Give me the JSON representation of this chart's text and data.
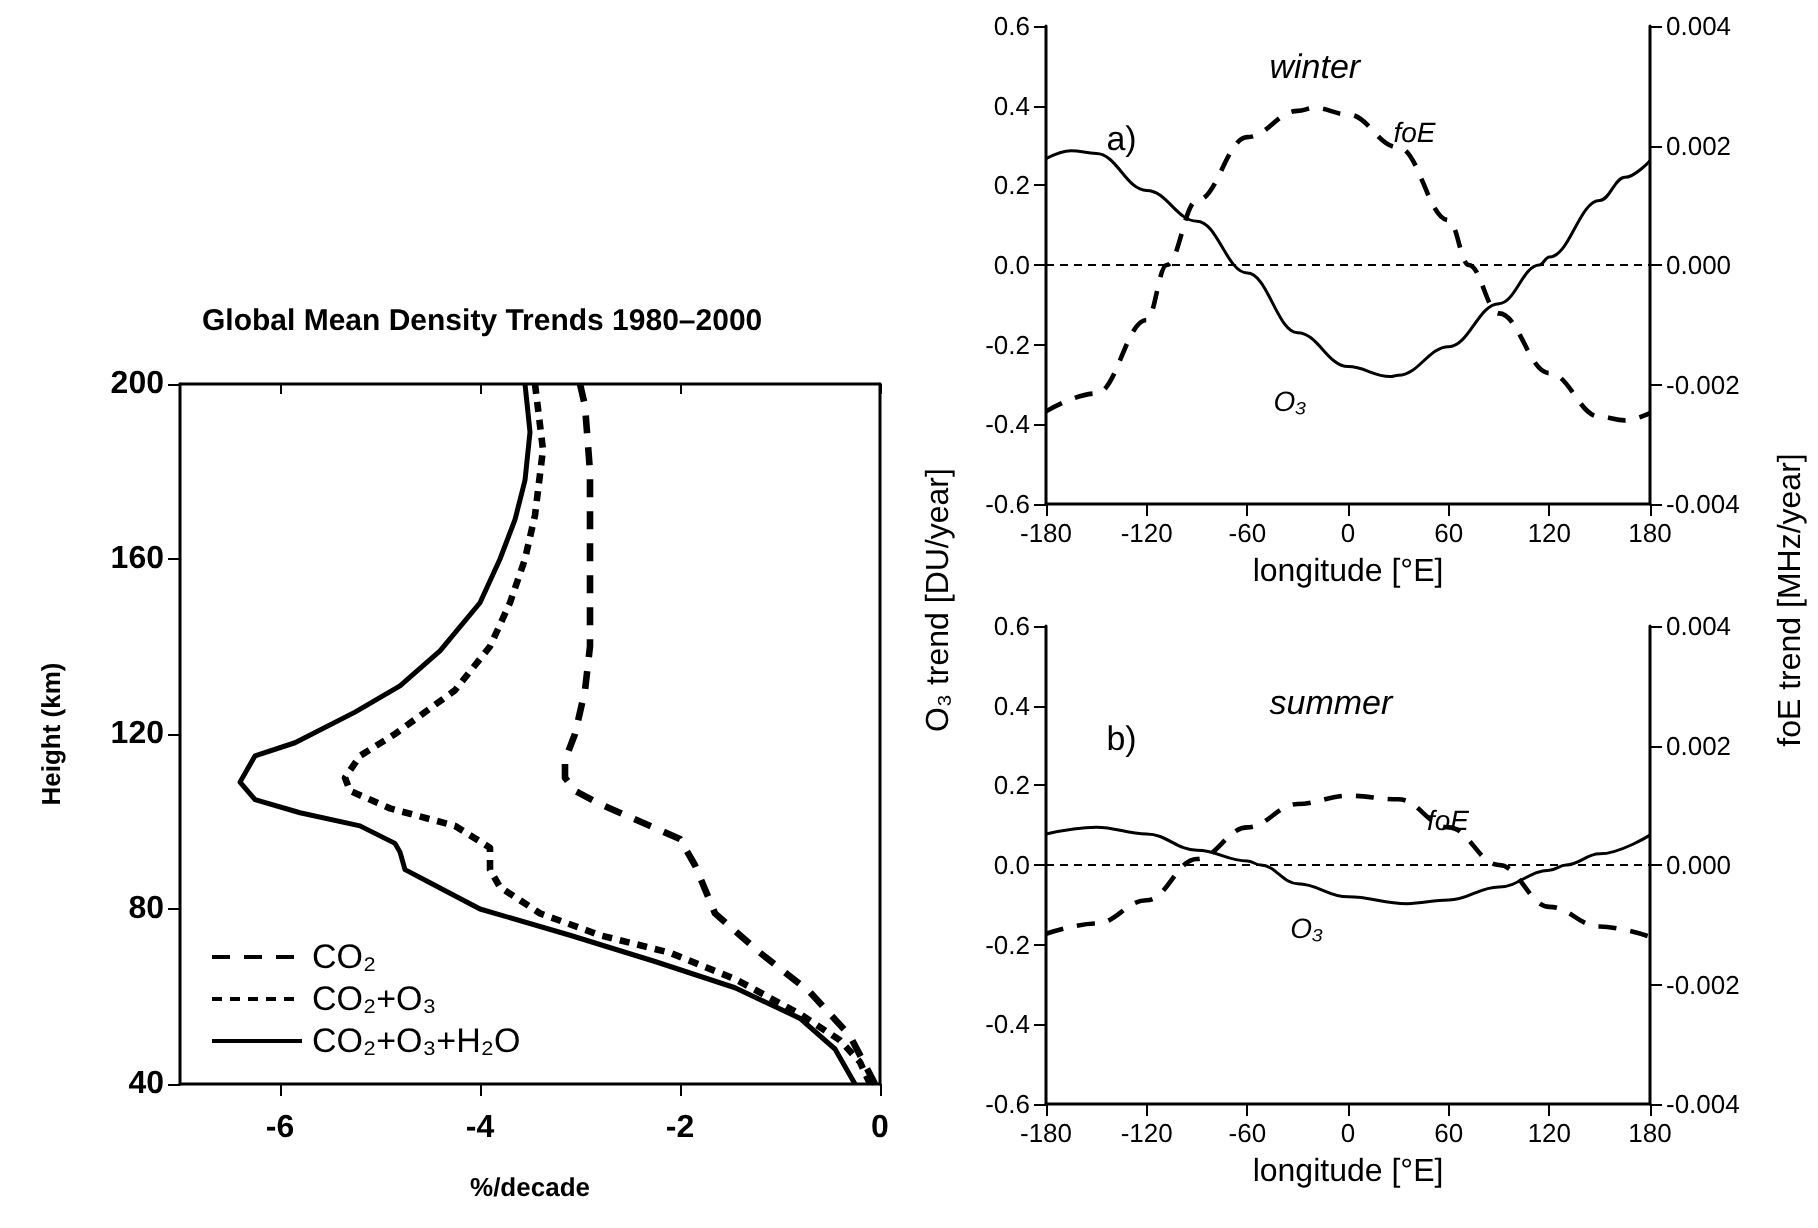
{
  "chart_data": [
    {
      "type": "line",
      "title": "Global Mean Density Trends 1980–2000",
      "xlabel": "%/decade",
      "ylabel": "Height (km)",
      "xlim": [
        -7,
        0
      ],
      "xticks": [
        -6,
        -4,
        -2,
        0
      ],
      "ylim": [
        40,
        200
      ],
      "yticks": [
        40,
        80,
        120,
        160,
        200
      ],
      "legend": "bottom left",
      "series": [
        {
          "name": "CO₂",
          "color": "#000000",
          "line_style": "dashed",
          "x": [
            -3.0,
            -2.95,
            -2.9,
            -2.9,
            -2.95,
            -3.05,
            -3.15,
            -3.15,
            -3.05,
            -2.8,
            -2.4,
            -2.0,
            -1.85,
            -1.65,
            -1.2,
            -0.7,
            -0.3,
            -0.05
          ],
          "values": [
            200,
            195,
            180,
            140,
            130,
            120,
            114,
            110,
            107,
            104,
            100,
            96,
            90,
            79,
            70,
            61,
            51,
            40
          ]
        },
        {
          "name": "CO₂+O₃",
          "color": "#000000",
          "line_style": "dotted",
          "x": [
            -3.45,
            -3.37,
            -3.45,
            -3.55,
            -3.7,
            -3.9,
            -4.25,
            -4.85,
            -5.2,
            -5.35,
            -5.3,
            -4.9,
            -4.25,
            -3.9,
            -3.9,
            -3.8,
            -3.4,
            -2.8,
            -2.1,
            -1.45,
            -0.8,
            -0.4,
            -0.2,
            -0.1
          ],
          "values": [
            200,
            185,
            170,
            160,
            150,
            140,
            130,
            120,
            115,
            110,
            107,
            103,
            99,
            94,
            89,
            85,
            79,
            74,
            70,
            64,
            56,
            50,
            45,
            40
          ]
        },
        {
          "name": "CO₂+O₃+H₂O",
          "color": "#000000",
          "line_style": "solid",
          "x": [
            -3.55,
            -3.5,
            -3.55,
            -3.65,
            -3.8,
            -4.0,
            -4.4,
            -4.8,
            -5.25,
            -5.85,
            -6.25,
            -6.4,
            -6.25,
            -5.8,
            -5.2,
            -4.85,
            -4.8,
            -4.75,
            -4.5,
            -4.0,
            -3.1,
            -2.25,
            -1.45,
            -0.8,
            -0.45,
            -0.3,
            -0.25
          ],
          "values": [
            200,
            189,
            178,
            169,
            160,
            150,
            139,
            131,
            125,
            118,
            115,
            109,
            105,
            102,
            99,
            95,
            93,
            89,
            86,
            80,
            74,
            68,
            62,
            55,
            48,
            42,
            40
          ]
        }
      ]
    },
    {
      "type": "line",
      "xlabel": "longitude [°E]",
      "ylabel": "O₃ trend [DU/year]",
      "y2label": "foE trend [MHz/year]",
      "annotations": [
        "a)",
        "winter"
      ],
      "xlim": [
        -180,
        180
      ],
      "xticks": [
        -180,
        -120,
        -60,
        0,
        60,
        120,
        180
      ],
      "ylim": [
        -0.6,
        0.6
      ],
      "yticks": [
        -0.6,
        -0.4,
        -0.2,
        {
          "value": 0,
          "label": "0.0"
        },
        0.2,
        0.4,
        0.6
      ],
      "y2lim": [
        -0.004,
        0.004
      ],
      "y2ticks": [
        -0.004,
        -0.002,
        {
          "value": 0,
          "label": "0.000"
        },
        0.002,
        0.004
      ],
      "ref_lines": [
        {
          "axis": "y",
          "value": 0,
          "line_style": "dashed",
          "color": "#000000"
        }
      ],
      "x": [
        -180,
        -165,
        -150,
        -120,
        -90,
        -60,
        -30,
        0,
        25,
        30,
        60,
        90,
        114,
        120,
        150,
        165,
        180
      ],
      "series": [
        {
          "name": "O₃",
          "color": "#000000",
          "line_style": "solid",
          "values": [
            0.267,
            0.287,
            0.28,
            0.187,
            0.11,
            -0.02,
            -0.17,
            -0.255,
            -0.28,
            -0.277,
            -0.205,
            -0.097,
            0,
            0.02,
            0.162,
            0.22,
            0.262
          ]
        },
        {
          "name": "foE",
          "color": "#000000",
          "line_style": "dashed",
          "axis": "y2",
          "x": [
            -180,
            -150,
            -120,
            -108,
            -90,
            -60,
            -30,
            -20,
            0,
            30,
            60,
            72,
            90,
            120,
            150,
            165,
            180
          ],
          "values": [
            -0.00245,
            -0.00215,
            -0.00092,
            0,
            0.00108,
            0.00214,
            0.00258,
            0.00263,
            0.00252,
            0.00197,
            0.00075,
            0,
            -0.00081,
            -0.00181,
            -0.00254,
            -0.0026,
            -0.00248
          ]
        }
      ]
    },
    {
      "type": "line",
      "xlabel": "longitude [°E]",
      "annotations": [
        "b)",
        "summer"
      ],
      "xlim": [
        -180,
        180
      ],
      "xticks": [
        -180,
        -120,
        -60,
        0,
        60,
        120,
        180
      ],
      "ylim": [
        -0.6,
        0.6
      ],
      "yticks": [
        -0.6,
        -0.4,
        -0.2,
        {
          "value": 0,
          "label": "0.0"
        },
        0.2,
        0.4,
        0.6
      ],
      "y2lim": [
        -0.004,
        0.004
      ],
      "y2ticks": [
        -0.004,
        -0.002,
        {
          "value": 0,
          "label": "0.000"
        },
        0.002,
        0.004
      ],
      "ref_lines": [
        {
          "axis": "y",
          "value": 0,
          "line_style": "dashed",
          "color": "#000000"
        }
      ],
      "x": [
        -180,
        -150,
        -120,
        -90,
        -60,
        -52,
        -30,
        0,
        35,
        60,
        90,
        120,
        130,
        150,
        180
      ],
      "series": [
        {
          "name": "O₃",
          "color": "#000000",
          "line_style": "solid",
          "values": [
            0.078,
            0.095,
            0.078,
            0.037,
            0.01,
            0,
            -0.047,
            -0.08,
            -0.097,
            -0.088,
            -0.055,
            -0.013,
            0,
            0.028,
            0.075
          ]
        },
        {
          "name": "foE",
          "color": "#000000",
          "line_style": "dashed",
          "axis": "y2",
          "x": [
            -180,
            -150,
            -120,
            -90,
            -60,
            -30,
            0,
            30,
            60,
            90,
            120,
            150,
            180
          ],
          "values": [
            -0.00115,
            -0.00098,
            -0.00059,
            0.0001,
            0.00063,
            0.00102,
            0.00116,
            0.0011,
            0.00063,
            0,
            -0.0007,
            -0.00103,
            -0.0012
          ]
        }
      ]
    }
  ]
}
